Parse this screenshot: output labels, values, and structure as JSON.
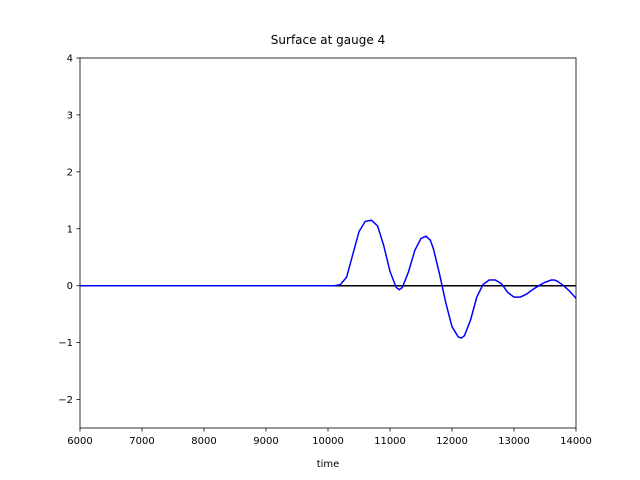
{
  "chart_data": {
    "type": "line",
    "title": "Surface at gauge 4",
    "x_label": "time",
    "xlim": [
      6000,
      14000
    ],
    "xticks": [
      6000,
      7000,
      8000,
      9000,
      10000,
      11000,
      12000,
      13000,
      14000
    ],
    "ylim": [
      -2.5,
      4
    ],
    "yticks": [
      {
        "value": -2,
        "label": "−2"
      },
      {
        "value": -1,
        "label": "−1"
      },
      0,
      1,
      2,
      3,
      4
    ],
    "grid": false,
    "series": [
      {
        "color": "#000000",
        "x": [
          6000,
          14000
        ],
        "values": [
          0,
          0
        ]
      },
      {
        "color": "#0000ff",
        "x": [
          6000,
          10000,
          10100,
          10200,
          10300,
          10400,
          10500,
          10600,
          10700,
          10800,
          10900,
          11000,
          11100,
          11150,
          11200,
          11300,
          11400,
          11500,
          11580,
          11650,
          11700,
          11800,
          11900,
          12000,
          12100,
          12150,
          12200,
          12300,
          12400,
          12500,
          12600,
          12700,
          12800,
          12900,
          13000,
          13100,
          13200,
          13300,
          13400,
          13500,
          13600,
          13650,
          13700,
          13800,
          13900,
          14000
        ],
        "values": [
          0,
          0,
          0,
          0.02,
          0.15,
          0.55,
          0.95,
          1.13,
          1.15,
          1.05,
          0.7,
          0.25,
          -0.03,
          -0.07,
          -0.03,
          0.25,
          0.62,
          0.83,
          0.87,
          0.8,
          0.65,
          0.2,
          -0.3,
          -0.72,
          -0.9,
          -0.92,
          -0.88,
          -0.6,
          -0.2,
          0.02,
          0.1,
          0.1,
          0.03,
          -0.12,
          -0.2,
          -0.2,
          -0.15,
          -0.07,
          0,
          0.06,
          0.1,
          0.1,
          0.08,
          0,
          -0.1,
          -0.22
        ]
      }
    ]
  }
}
